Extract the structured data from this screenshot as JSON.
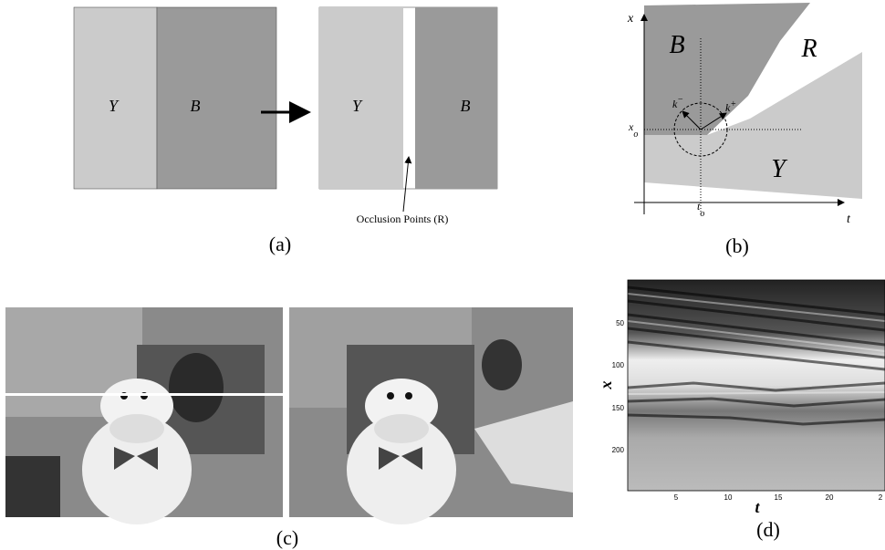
{
  "panel_a": {
    "left_y": "Y",
    "left_b": "B",
    "right_y": "Y",
    "right_b": "B",
    "annotation": "Occlusion Points (R)",
    "caption": "(a)"
  },
  "panel_b": {
    "axis_x": "x",
    "axis_t": "t",
    "region_b": "B",
    "region_r": "R",
    "region_y": "Y",
    "k_minus": "k",
    "k_minus_sup": "−",
    "k_plus": "k",
    "k_plus_sup": "+",
    "x_o": "x",
    "x_o_sub": "o",
    "t_o": "t",
    "t_o_sub": "o",
    "caption": "(b)"
  },
  "panel_c": {
    "caption": "(c)"
  },
  "panel_d": {
    "y_label": "x",
    "x_label": "t",
    "y_ticks": [
      "50",
      "100",
      "150",
      "200"
    ],
    "x_ticks": [
      "5",
      "10",
      "15",
      "20",
      "2"
    ],
    "caption": "(d)"
  }
}
